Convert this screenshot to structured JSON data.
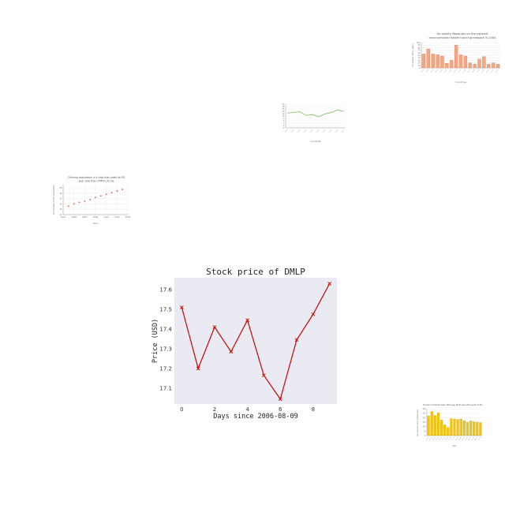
{
  "chart_data": [
    {
      "type": "bar",
      "title": "Air quality Measures on the national environmental health tracking network in 2004",
      "xlabel": "Countries",
      "ylabel": "Air quality index (ppm)",
      "ylim": [
        0,
        100
      ],
      "yticks": [
        0,
        10,
        20,
        30,
        40,
        50,
        60,
        70,
        80,
        90,
        100
      ],
      "categories": [
        "",
        "",
        "",
        "",
        "",
        "",
        "",
        "",
        "",
        "",
        "",
        "",
        "",
        "",
        "",
        "",
        ""
      ],
      "values": [
        55,
        75,
        55,
        52,
        47,
        18,
        30,
        90,
        52,
        47,
        20,
        15,
        35,
        45,
        15,
        20,
        15
      ],
      "color": "#f4a582",
      "grid": true
    },
    {
      "type": "line",
      "title": "",
      "xlabel": "Countries",
      "ylabel": "",
      "categories": [
        "",
        "",
        "",
        "",
        "",
        "",
        "",
        "",
        "",
        ""
      ],
      "values": [
        12.5,
        13.0,
        13.6,
        10.5,
        11.2,
        9.4,
        11.8,
        13.0,
        15.1,
        13.9
      ],
      "ylim": [
        0,
        20
      ],
      "yticks": [
        0,
        2,
        4,
        6,
        8,
        10,
        12,
        14,
        16,
        18,
        20
      ],
      "color": "#7fbf5f",
      "grid": true
    },
    {
      "type": "scatter",
      "title": "Chinese population in k ings than loath at 50 year olds than (FPR%) to Ha",
      "xlabel": "Years",
      "ylabel": "Percentage of the population",
      "x": [
        1996,
        1998,
        2000,
        2002,
        2004,
        2006,
        2008,
        2010,
        2012,
        2014,
        2016
      ],
      "y": [
        28,
        30,
        31.5,
        32.5,
        34,
        36,
        37.5,
        39,
        40.5,
        42,
        43.5
      ],
      "xlim": [
        1994,
        2018
      ],
      "xticks": [
        1994,
        1998,
        2002,
        2006,
        2010,
        2014,
        2018
      ],
      "ylim": [
        20,
        48
      ],
      "yticks": [
        20,
        25,
        30,
        35,
        40,
        45
      ],
      "color": "#e6553a",
      "grid": true
    },
    {
      "type": "line",
      "title": "Stock price of DMLP",
      "xlabel": "Days since 2006-08-09",
      "ylabel": "Price (USD)",
      "x": [
        0,
        1,
        2,
        3,
        4,
        5,
        6,
        7,
        8,
        9
      ],
      "y": [
        17.51,
        17.2,
        17.41,
        17.285,
        17.445,
        17.165,
        17.045,
        17.345,
        17.475,
        17.63
      ],
      "xlim": [
        -0.45,
        9.45
      ],
      "xticks": [
        0,
        2,
        4,
        6,
        8
      ],
      "ylim": [
        17.02,
        17.66
      ],
      "yticks": [
        "17.1",
        "17.2",
        "17.3",
        "17.4",
        "17.5",
        "17.6"
      ],
      "color": "#cc1111",
      "marker": "x",
      "background": "#eaeaf2",
      "grid": false
    },
    {
      "type": "bar",
      "title": "Number of Internet Users: Other age 18-34 years (thousands) of Pos",
      "xlabel": "Year",
      "ylabel": "No. Internet Users (thousands)",
      "categories": [
        "",
        "",
        "",
        "",
        "",
        "",
        "",
        "",
        "",
        "",
        "",
        "",
        "",
        "",
        "",
        "",
        ""
      ],
      "values": [
        220,
        270,
        225,
        255,
        175,
        120,
        90,
        190,
        185,
        180,
        185,
        165,
        150,
        165,
        155,
        150,
        145
      ],
      "ylim": [
        0,
        300
      ],
      "yticks": [
        0,
        50,
        100,
        150,
        200,
        250,
        300
      ],
      "color": "#f2c414",
      "grid": true
    }
  ]
}
